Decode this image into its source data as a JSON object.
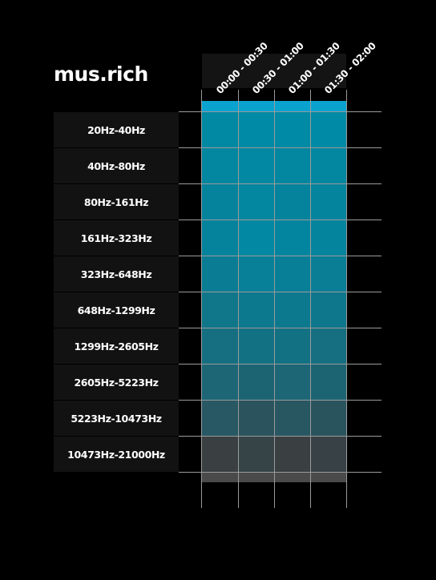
{
  "chart_data": {
    "type": "heatmap",
    "title": "mus.rich",
    "columns": [
      "00:00 - 00:30",
      "00:30 - 01:00",
      "01:00 - 01:30",
      "01:30 - 02:00"
    ],
    "rows": [
      "20Hz-40Hz",
      "40Hz-80Hz",
      "80Hz-161Hz",
      "161Hz-323Hz",
      "323Hz-648Hz",
      "648Hz-1299Hz",
      "1299Hz-2605Hz",
      "2605Hz-5223Hz",
      "5223Hz-10473Hz",
      "10473Hz-21000Hz"
    ],
    "values": [
      [
        0.82,
        0.83,
        0.83,
        0.83
      ],
      [
        0.8,
        0.81,
        0.8,
        0.8
      ],
      [
        0.77,
        0.8,
        0.77,
        0.78
      ],
      [
        0.77,
        0.81,
        0.79,
        0.78
      ],
      [
        0.72,
        0.75,
        0.74,
        0.73
      ],
      [
        0.66,
        0.69,
        0.69,
        0.67
      ],
      [
        0.6,
        0.62,
        0.62,
        0.6
      ],
      [
        0.53,
        0.51,
        0.53,
        0.51
      ],
      [
        0.41,
        0.37,
        0.4,
        0.38
      ],
      [
        0.2,
        0.24,
        0.2,
        0.22
      ]
    ],
    "colors": {
      "high": "#008aa5",
      "low": "#3a3f42",
      "total_band": "#0aa3d0",
      "footer_band": "#4a4a4a",
      "grid": "#9a9a9a"
    },
    "grid": true
  }
}
